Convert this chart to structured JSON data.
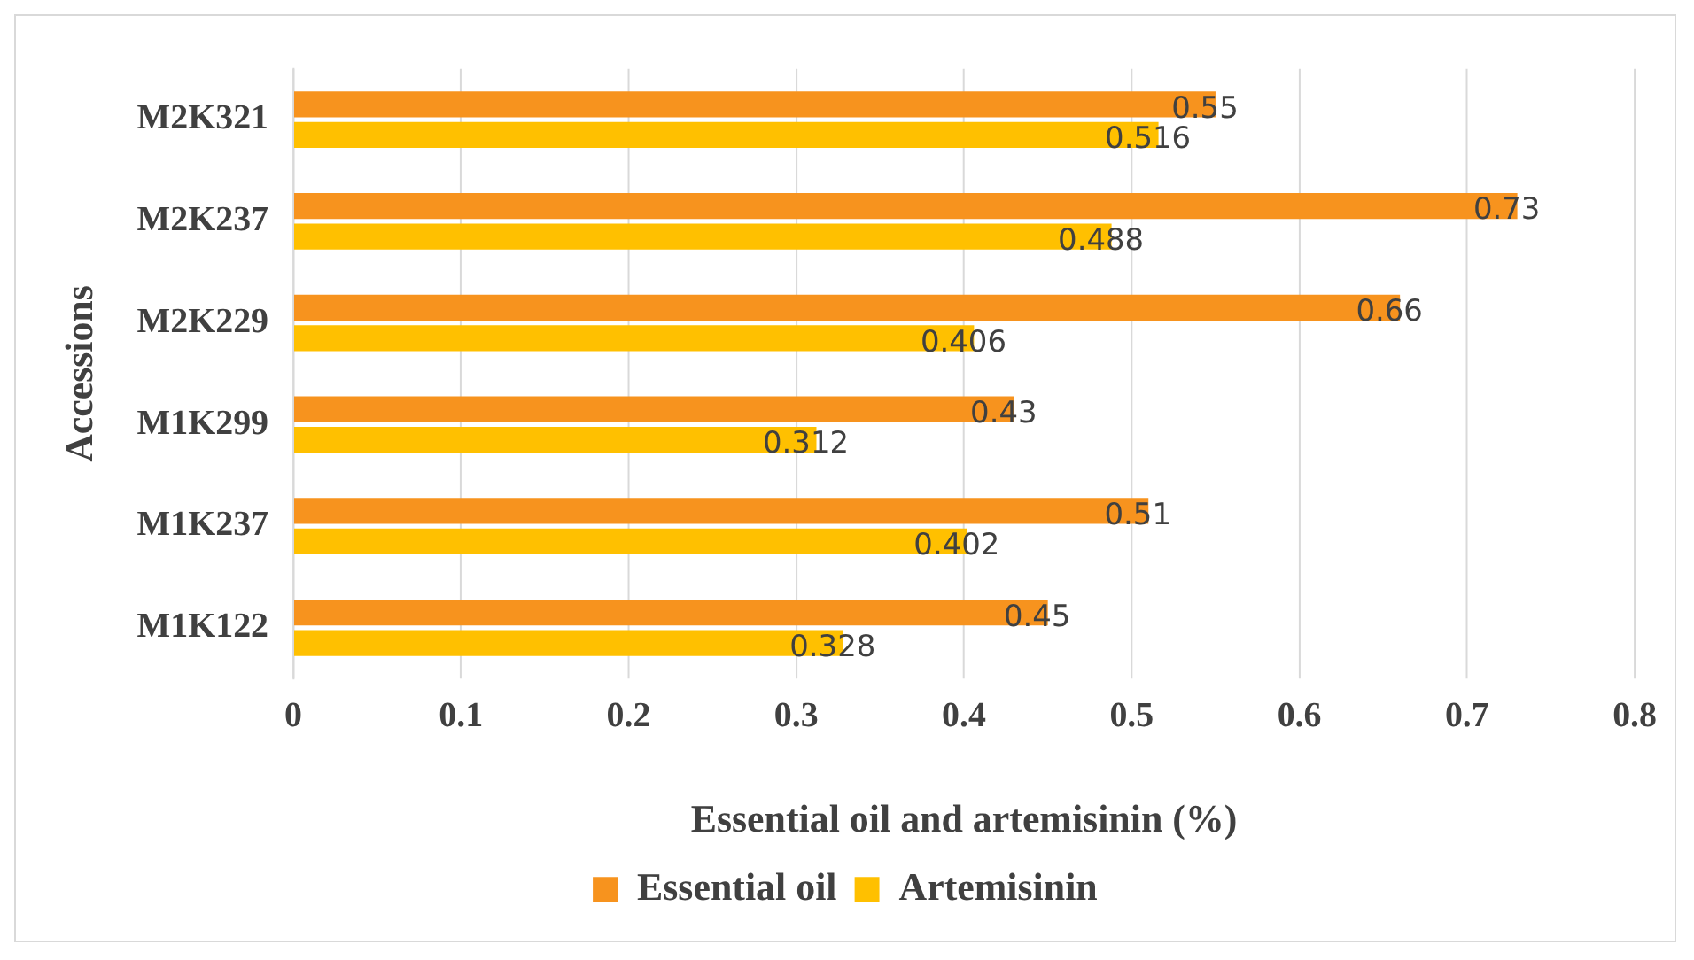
{
  "chart_data": {
    "type": "bar",
    "orientation": "horizontal",
    "xlabel": "Essential oil and artemisinin (%)",
    "ylabel": "Accessions",
    "categories": [
      "M2K321",
      "M2K237",
      "M2K229",
      "M1K299",
      "M1K237",
      "M1K122"
    ],
    "series": [
      {
        "name": "Essential oil",
        "color": "#f7931e",
        "values": [
          0.55,
          0.73,
          0.66,
          0.43,
          0.51,
          0.45
        ]
      },
      {
        "name": "Artemisinin",
        "color": "#ffc000",
        "values": [
          0.516,
          0.488,
          0.406,
          0.312,
          0.402,
          0.328
        ]
      }
    ],
    "xlim": [
      0,
      0.8
    ],
    "xticks": [
      0,
      0.1,
      0.2,
      0.3,
      0.4,
      0.5,
      0.6,
      0.7,
      0.8
    ],
    "grid": "x",
    "legend": "bottom",
    "data_labels": true
  }
}
